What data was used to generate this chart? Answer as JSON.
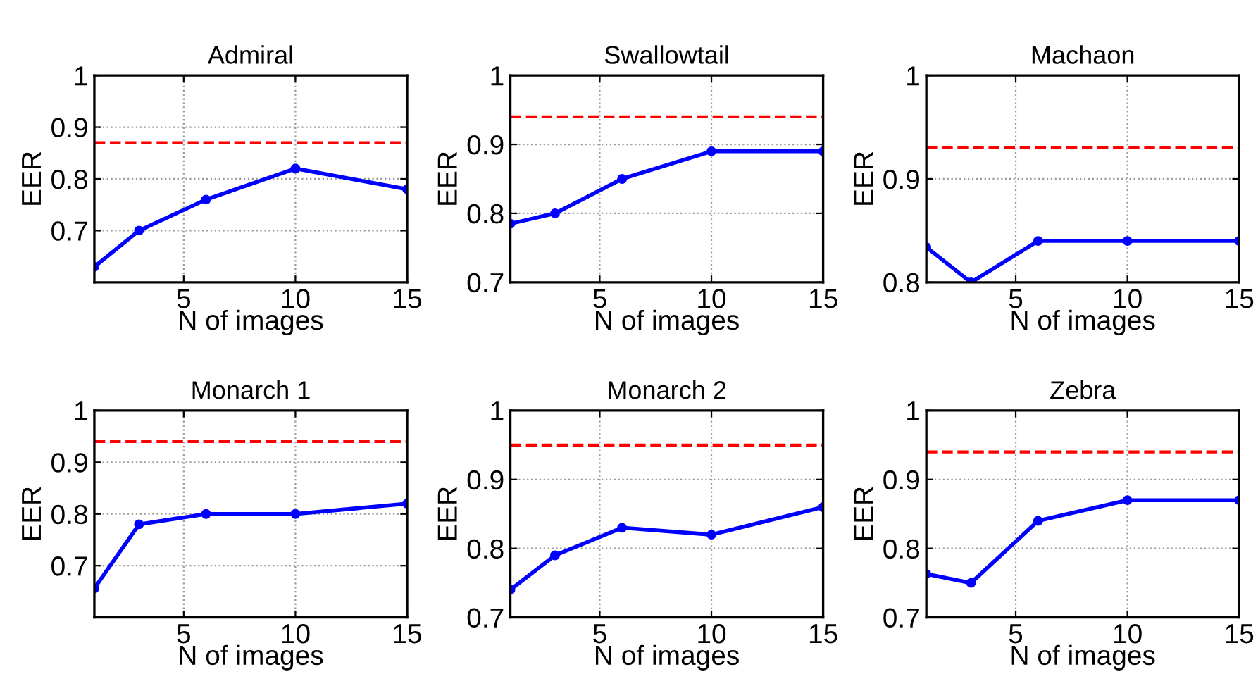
{
  "chart_data": [
    {
      "type": "line",
      "title": "Admiral",
      "xlabel": "N of images",
      "ylabel": "EER",
      "x": [
        1,
        3,
        6,
        10,
        15
      ],
      "series": [
        {
          "color": "#0000ff",
          "values": [
            0.63,
            0.7,
            0.76,
            0.82,
            0.78
          ]
        }
      ],
      "xlim": [
        1,
        15
      ],
      "xticks": [
        5,
        10,
        15
      ],
      "ylim": [
        0.6,
        1
      ],
      "yticks": [
        0.7,
        0.8,
        0.9,
        1
      ],
      "ref_lines": [
        {
          "axis": "y",
          "value": 0.87,
          "color": "#ff0000",
          "line_style": "dashed"
        }
      ],
      "grid": true,
      "marker": "circle",
      "line_style": "solid"
    },
    {
      "type": "line",
      "title": "Swallowtail",
      "xlabel": "N of images",
      "ylabel": "EER",
      "x": [
        1,
        3,
        6,
        10,
        15
      ],
      "series": [
        {
          "color": "#0000ff",
          "values": [
            0.785,
            0.8,
            0.85,
            0.89,
            0.89
          ]
        }
      ],
      "xlim": [
        1,
        15
      ],
      "xticks": [
        5,
        10,
        15
      ],
      "ylim": [
        0.7,
        1
      ],
      "yticks": [
        0.7,
        0.8,
        0.9,
        1
      ],
      "ref_lines": [
        {
          "axis": "y",
          "value": 0.94,
          "color": "#ff0000",
          "line_style": "dashed"
        }
      ],
      "grid": true,
      "marker": "circle",
      "line_style": "solid"
    },
    {
      "type": "line",
      "title": "Machaon",
      "xlabel": "N of images",
      "ylabel": "EER",
      "x": [
        1,
        3,
        6,
        10,
        15
      ],
      "series": [
        {
          "color": "#0000ff",
          "values": [
            0.834,
            0.8,
            0.84,
            0.84,
            0.84
          ]
        }
      ],
      "xlim": [
        1,
        15
      ],
      "xticks": [
        5,
        10,
        15
      ],
      "ylim": [
        0.8,
        1
      ],
      "yticks": [
        0.8,
        0.9,
        1
      ],
      "ref_lines": [
        {
          "axis": "y",
          "value": 0.93,
          "color": "#ff0000",
          "line_style": "dashed"
        }
      ],
      "grid": true,
      "marker": "circle",
      "line_style": "solid"
    },
    {
      "type": "line",
      "title": "Monarch 1",
      "xlabel": "N of images",
      "ylabel": "EER",
      "x": [
        1,
        3,
        6,
        10,
        15
      ],
      "series": [
        {
          "color": "#0000ff",
          "values": [
            0.656,
            0.78,
            0.8,
            0.8,
            0.82
          ]
        }
      ],
      "xlim": [
        1,
        15
      ],
      "xticks": [
        5,
        10,
        15
      ],
      "ylim": [
        0.6,
        1
      ],
      "yticks": [
        0.7,
        0.8,
        0.9,
        1
      ],
      "ref_lines": [
        {
          "axis": "y",
          "value": 0.94,
          "color": "#ff0000",
          "line_style": "dashed"
        }
      ],
      "grid": true,
      "marker": "circle",
      "line_style": "solid"
    },
    {
      "type": "line",
      "title": "Monarch 2",
      "xlabel": "N of images",
      "ylabel": "EER",
      "x": [
        1,
        3,
        6,
        10,
        15
      ],
      "series": [
        {
          "color": "#0000ff",
          "values": [
            0.74,
            0.79,
            0.83,
            0.82,
            0.86
          ]
        }
      ],
      "xlim": [
        1,
        15
      ],
      "xticks": [
        5,
        10,
        15
      ],
      "ylim": [
        0.7,
        1
      ],
      "yticks": [
        0.7,
        0.8,
        0.9,
        1
      ],
      "ref_lines": [
        {
          "axis": "y",
          "value": 0.95,
          "color": "#ff0000",
          "line_style": "dashed"
        }
      ],
      "grid": true,
      "marker": "circle",
      "line_style": "solid"
    },
    {
      "type": "line",
      "title": "Zebra",
      "xlabel": "N of images",
      "ylabel": "EER",
      "x": [
        1,
        3,
        6,
        10,
        15
      ],
      "series": [
        {
          "color": "#0000ff",
          "values": [
            0.763,
            0.75,
            0.84,
            0.87,
            0.87
          ]
        }
      ],
      "xlim": [
        1,
        15
      ],
      "xticks": [
        5,
        10,
        15
      ],
      "ylim": [
        0.7,
        1
      ],
      "yticks": [
        0.7,
        0.8,
        0.9,
        1
      ],
      "ref_lines": [
        {
          "axis": "y",
          "value": 0.94,
          "color": "#ff0000",
          "line_style": "dashed"
        }
      ],
      "grid": true,
      "marker": "circle",
      "line_style": "solid"
    }
  ]
}
